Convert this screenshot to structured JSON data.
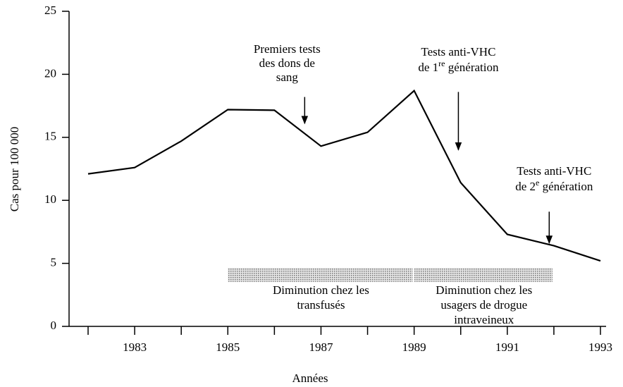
{
  "chart_data": {
    "type": "line",
    "x": [
      1982,
      1983,
      1984,
      1985,
      1986,
      1987,
      1988,
      1989,
      1990,
      1991,
      1992,
      1993
    ],
    "series": [
      {
        "color": "#000000",
        "values": [
          12.1,
          12.6,
          14.7,
          17.2,
          17.15,
          14.3,
          15.4,
          18.7,
          11.4,
          7.3,
          6.4,
          5.2
        ]
      }
    ],
    "xlim": [
      1982,
      1993
    ],
    "xticks": [
      1983,
      1985,
      1987,
      1989,
      1991,
      1993
    ],
    "xticks_minor": [
      1982,
      1984,
      1986,
      1988,
      1990,
      1992
    ],
    "ylim": [
      0,
      25
    ],
    "yticks": [
      0,
      5,
      10,
      15,
      20,
      25
    ],
    "xlabel": "Années",
    "ylabel": "Cas pour 100 000",
    "annotations": [
      {
        "x": 1986.65,
        "y_from": 18.2,
        "y_to": 16.1,
        "lines": [
          "Premiers tests",
          "des dons de",
          "sang"
        ]
      },
      {
        "x": 1989.95,
        "y_from": 18.6,
        "y_to": 14.0,
        "lines": [
          "Tests anti-VHC"
        ],
        "sup_line": {
          "before": "de 1",
          "sup": "re",
          "after": " génération"
        }
      },
      {
        "x": 1991.9,
        "y_from": 9.1,
        "y_to": 6.6,
        "lines": [
          "Tests anti-VHC"
        ],
        "sup_line": {
          "before": "de 2",
          "sup": "e",
          "after": " génération"
        }
      }
    ],
    "periods": [
      {
        "start": 1985,
        "end": 1989,
        "lines": [
          "Diminution chez les",
          "transfusés"
        ]
      },
      {
        "start": 1989,
        "end": 1992,
        "lines": [
          "Diminution chez les",
          "usagers de drogue",
          "intraveineux"
        ]
      }
    ]
  }
}
